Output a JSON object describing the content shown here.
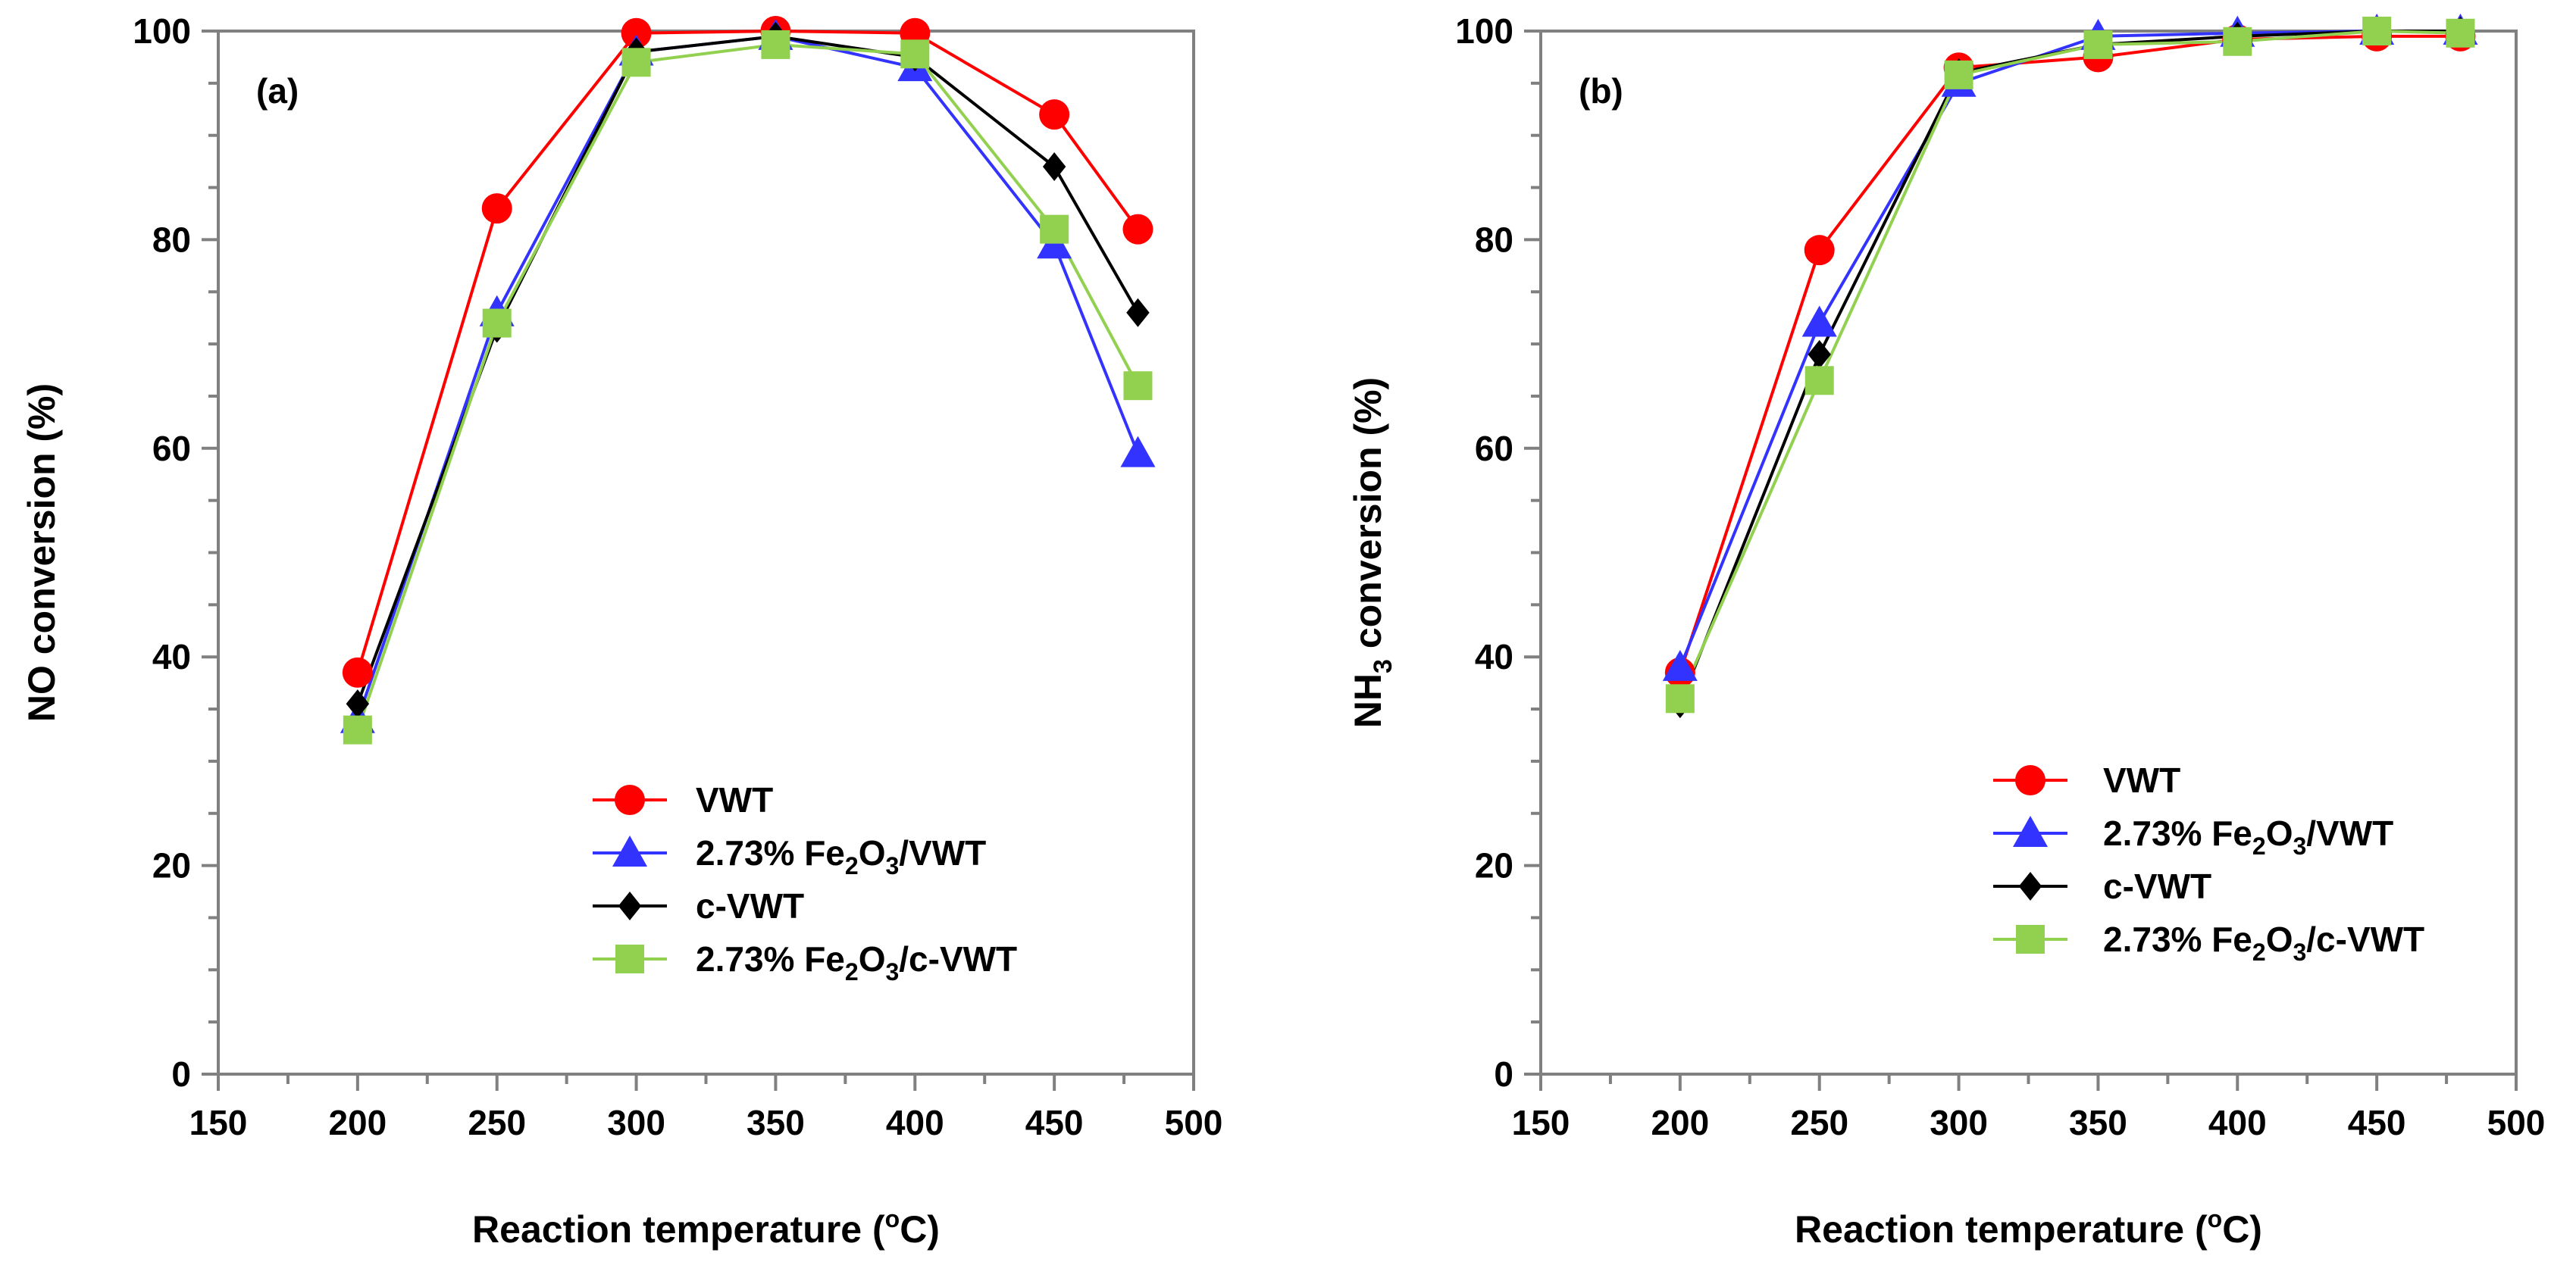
{
  "chart_data": [
    {
      "type": "line",
      "panel_label": "(a)",
      "xlabel_main": "Reaction temperature (",
      "xlabel_sup": "o",
      "xlabel_end": "C)",
      "ylabel": "NO conversion (%)",
      "xlim": [
        150,
        500
      ],
      "ylim": [
        0,
        100
      ],
      "xticks": [
        "150",
        "200",
        "250",
        "300",
        "350",
        "400",
        "450",
        "500"
      ],
      "yticks": [
        "0",
        "20",
        "40",
        "60",
        "80",
        "100"
      ],
      "x": [
        200,
        250,
        300,
        350,
        400,
        450,
        480
      ],
      "series": [
        {
          "name": "VWT",
          "color": "#ff0000",
          "marker": "circle",
          "values": [
            38.5,
            83,
            99.8,
            100,
            99.8,
            92,
            81
          ]
        },
        {
          "name": "2.73% Fe2O3/VWT",
          "color": "#3333ff",
          "marker": "triangle",
          "values": [
            34,
            73,
            98,
            99.5,
            96.5,
            79.5,
            59.5
          ]
        },
        {
          "name": "c-VWT",
          "color": "#000000",
          "marker": "diamond",
          "values": [
            35.5,
            71.5,
            98,
            99.5,
            97.5,
            87,
            73
          ]
        },
        {
          "name": "2.73% Fe2O3/c-VWT",
          "color": "#92d050",
          "marker": "square",
          "values": [
            33,
            72,
            97,
            98.7,
            97.8,
            81,
            66
          ]
        }
      ],
      "legend_location": "lower-center",
      "legend": [
        {
          "pre": "VWT",
          "sub": "",
          "post": ""
        },
        {
          "pre": "2.73% Fe",
          "sub": "2",
          "mid": "O",
          "sub2": "3",
          "post": "/VWT"
        },
        {
          "pre": "c-VWT",
          "sub": "",
          "post": ""
        },
        {
          "pre": "2.73% Fe",
          "sub": "2",
          "mid": "O",
          "sub2": "3",
          "post": "/c-VWT"
        }
      ]
    },
    {
      "type": "line",
      "panel_label": "(b)",
      "xlabel_main": "Reaction temperature (",
      "xlabel_sup": "o",
      "xlabel_end": "C)",
      "ylabel_pre": "NH",
      "ylabel_sub": "3",
      "ylabel_post": " conversion (%)",
      "xlim": [
        150,
        500
      ],
      "ylim": [
        0,
        100
      ],
      "xticks": [
        "150",
        "200",
        "250",
        "300",
        "350",
        "400",
        "450",
        "500"
      ],
      "yticks": [
        "0",
        "20",
        "40",
        "60",
        "80",
        "100"
      ],
      "x": [
        200,
        250,
        300,
        350,
        400,
        450,
        480
      ],
      "series": [
        {
          "name": "VWT",
          "color": "#ff0000",
          "marker": "circle",
          "values": [
            38.5,
            79,
            96.5,
            97.5,
            99.2,
            99.5,
            99.5
          ]
        },
        {
          "name": "2.73% Fe2O3/VWT",
          "color": "#3333ff",
          "marker": "triangle",
          "values": [
            39,
            72,
            95,
            99.5,
            99.8,
            100,
            100
          ]
        },
        {
          "name": "c-VWT",
          "color": "#000000",
          "marker": "diamond",
          "values": [
            35.5,
            69,
            96,
            98.7,
            99.5,
            100,
            100
          ]
        },
        {
          "name": "2.73% Fe2O3/c-VWT",
          "color": "#92d050",
          "marker": "square",
          "values": [
            36,
            66.5,
            95.8,
            98.7,
            99,
            100,
            99.8
          ]
        }
      ],
      "legend_location": "lower-center",
      "legend": [
        {
          "pre": "VWT",
          "sub": "",
          "post": ""
        },
        {
          "pre": "2.73% Fe",
          "sub": "2",
          "mid": "O",
          "sub2": "3",
          "post": "/VWT"
        },
        {
          "pre": "c-VWT",
          "sub": "",
          "post": ""
        },
        {
          "pre": "2.73% Fe",
          "sub": "2",
          "mid": "O",
          "sub2": "3",
          "post": "/c-VWT"
        }
      ]
    }
  ]
}
